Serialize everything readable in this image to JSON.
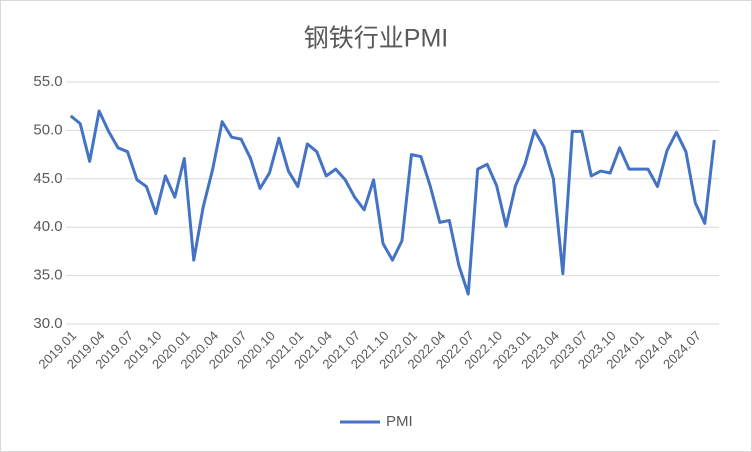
{
  "chart_data": {
    "type": "line",
    "title": "钢铁行业PMI",
    "categories": [
      "2019.01",
      null,
      null,
      "2019.04",
      null,
      null,
      "2019.07",
      null,
      null,
      "2019.10",
      null,
      null,
      "2020.01",
      null,
      null,
      "2020.04",
      null,
      null,
      "2020.07",
      null,
      null,
      "2020.10",
      null,
      null,
      "2021.01",
      null,
      null,
      "2021.04",
      null,
      null,
      "2021.07",
      null,
      null,
      "2021.10",
      null,
      null,
      "2022.01",
      null,
      null,
      "2022.04",
      null,
      null,
      "2022.07",
      null,
      null,
      "2022.10",
      null,
      null,
      "2023.01",
      null,
      null,
      "2023.04",
      null,
      null,
      "2023.07",
      null,
      null,
      "2023.10",
      null,
      null,
      "2024.01",
      null,
      null,
      "2024.04",
      null,
      null,
      "2024.07",
      null,
      null
    ],
    "series": [
      {
        "name": "PMI",
        "color": "#4472c4",
        "values": [
          51.5,
          50.7,
          46.8,
          52.0,
          49.9,
          48.2,
          47.8,
          44.9,
          44.2,
          41.4,
          45.3,
          43.1,
          47.1,
          36.6,
          42.1,
          46.0,
          50.9,
          49.3,
          49.1,
          47.1,
          44.0,
          45.6,
          49.2,
          45.8,
          44.2,
          48.6,
          47.8,
          45.3,
          46.0,
          44.9,
          43.1,
          41.8,
          44.9,
          38.3,
          36.6,
          38.6,
          47.5,
          47.3,
          44.2,
          40.5,
          40.7,
          36.1,
          33.1,
          46.0,
          46.5,
          44.3,
          40.1,
          44.3,
          46.5,
          50.0,
          48.3,
          45.0,
          35.2,
          49.9,
          49.9,
          45.3,
          45.8,
          45.6,
          48.2,
          46.0,
          46.0,
          46.0,
          44.2,
          47.9,
          49.8,
          47.8,
          42.5,
          40.4,
          49.0
        ]
      }
    ],
    "ylim": [
      30,
      55
    ],
    "yticks": [
      {
        "value": 30,
        "label": "30.0"
      },
      {
        "value": 35,
        "label": "35.0"
      },
      {
        "value": 40,
        "label": "40.0"
      },
      {
        "value": 45,
        "label": "45.0"
      },
      {
        "value": 50,
        "label": "50.0"
      },
      {
        "value": 55,
        "label": "55.0"
      }
    ],
    "grid": true,
    "legend": "bottom"
  }
}
